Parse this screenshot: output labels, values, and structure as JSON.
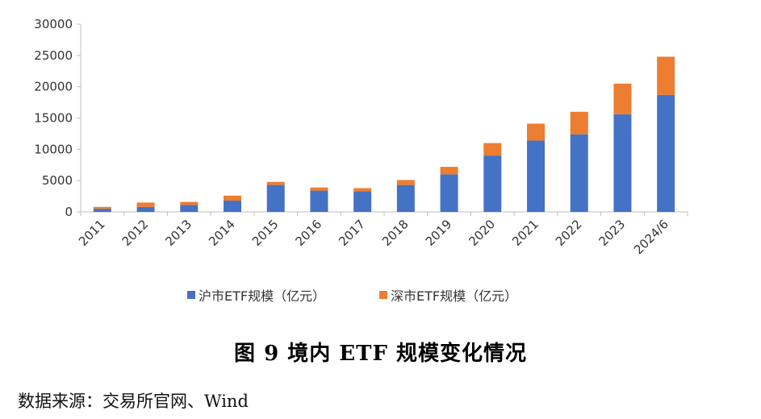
{
  "chart_data": {
    "type": "bar",
    "stacked": true,
    "categories": [
      "2011",
      "2012",
      "2013",
      "2014",
      "2015",
      "2016",
      "2017",
      "2018",
      "2019",
      "2020",
      "2021",
      "2022",
      "2023",
      "2024/6"
    ],
    "series": [
      {
        "name": "沪市ETF规模（亿元）",
        "color": "#4472C4",
        "values": [
          500,
          800,
          1100,
          1800,
          4300,
          3400,
          3300,
          4300,
          6000,
          9000,
          11400,
          12400,
          15600,
          18700
        ]
      },
      {
        "name": "深市ETF规模（亿元）",
        "color": "#ED7D31",
        "values": [
          300,
          700,
          500,
          800,
          500,
          500,
          500,
          800,
          1200,
          2000,
          2700,
          3600,
          4900,
          6100
        ]
      }
    ],
    "ylim": [
      0,
      30000
    ],
    "yticks": [
      0,
      5000,
      10000,
      15000,
      20000,
      25000,
      30000
    ],
    "grid": false,
    "legend_position": "bottom"
  },
  "caption": "图 9    境内 ETF 规模变化情况",
  "source": "数据来源：交易所官网、Wind"
}
